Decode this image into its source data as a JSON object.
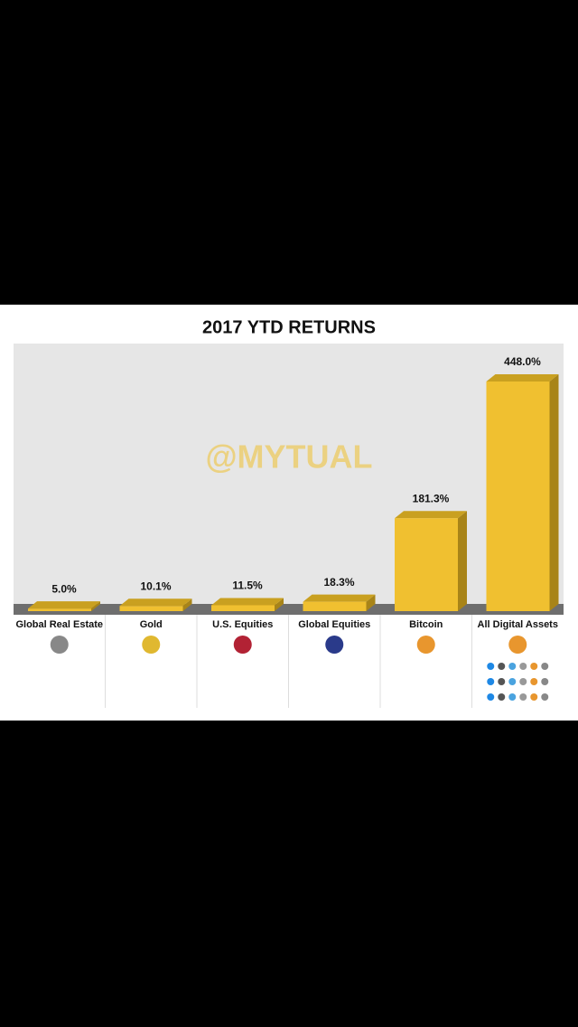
{
  "chart_data": {
    "type": "bar",
    "title": "2017 YTD RETURNS",
    "watermark": "@MYTUAL",
    "categories": [
      "Global Real Estate",
      "Gold",
      "U.S. Equities",
      "Global Equities",
      "Bitcoin",
      "All Digital Assets"
    ],
    "values": [
      5.0,
      10.1,
      11.5,
      18.3,
      181.3,
      448.0
    ],
    "value_labels": [
      "5.0%",
      "10.1%",
      "11.5%",
      "18.3%",
      "181.3%",
      "448.0%"
    ],
    "color": "#f0c030"
  }
}
